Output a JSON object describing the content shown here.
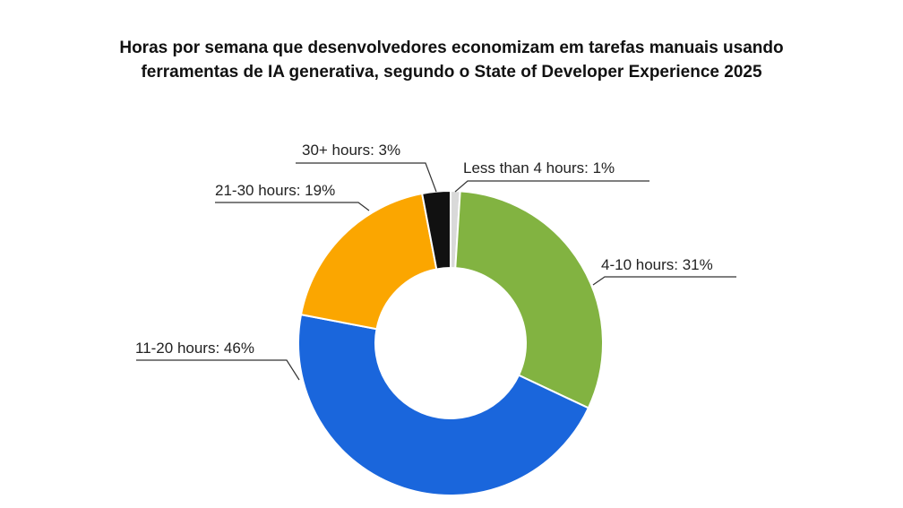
{
  "title_lines": [
    "Horas por semana que desenvolvedores economizam em tarefas manuais usando",
    "ferramentas de IA generativa, segundo o State of Developer Experience 2025"
  ],
  "chart_data": {
    "type": "pie",
    "variant": "donut",
    "title": "Horas por semana que desenvolvedores economizam em tarefas manuais usando ferramentas de IA generativa, segundo o State of Developer Experience 2025",
    "legend": "none",
    "slices": [
      {
        "name": "Less than 4 hours",
        "value": 1,
        "label": "Less than 4 hours: 1%",
        "color": "#d9d9d9"
      },
      {
        "name": "4-10 hours",
        "value": 31,
        "label": "4-10 hours: 31%",
        "color": "#82b341"
      },
      {
        "name": "11-20 hours",
        "value": 46,
        "label": "11-20 hours: 46%",
        "color": "#1a66dc"
      },
      {
        "name": "21-30 hours",
        "value": 19,
        "label": "21-30 hours: 19%",
        "color": "#fba600"
      },
      {
        "name": "30+ hours",
        "value": 3,
        "label": "30+ hours: 3%",
        "color": "#111111"
      }
    ]
  }
}
